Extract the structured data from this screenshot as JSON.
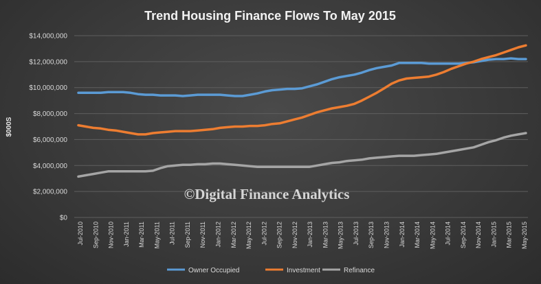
{
  "chart_data": {
    "type": "line",
    "title": "Trend Housing Finance Flows To May 2015",
    "ylabel": "$000S",
    "xlabel": "",
    "ylim": [
      0,
      14000000
    ],
    "yticks": [
      0,
      2000000,
      4000000,
      6000000,
      8000000,
      10000000,
      12000000,
      14000000
    ],
    "ytick_labels": [
      "$0",
      "$2,000,000",
      "$4,000,000",
      "$6,000,000",
      "$8,000,000",
      "$10,000,000",
      "$12,000,000",
      "$14,000,000"
    ],
    "x_tick_labels": [
      "Jul-2010",
      "Sep-2010",
      "Nov-2010",
      "Jan-2011",
      "Mar-2011",
      "May-2011",
      "Jul-2011",
      "Sep-2011",
      "Nov-2011",
      "Jan-2012",
      "Mar-2012",
      "May-2012",
      "Jul-2012",
      "Sep-2012",
      "Nov-2012",
      "Jan-2013",
      "Mar-2013",
      "May-2013",
      "Jul-2013",
      "Sep-2013",
      "Nov-2013",
      "Jan-2014",
      "Mar-2014",
      "May-2014",
      "Jul-2014",
      "Sep-2014",
      "Nov-2014",
      "Jan-2015",
      "Mar-2015",
      "May-2015"
    ],
    "grid": true,
    "legend_position": "bottom",
    "watermark": "©Digital Finance Analytics",
    "series": [
      {
        "name": "Owner Occupied",
        "color": "#5b9bd5",
        "values": [
          9600000,
          9600000,
          9600000,
          9600000,
          9650000,
          9650000,
          9650000,
          9600000,
          9500000,
          9450000,
          9450000,
          9400000,
          9400000,
          9400000,
          9350000,
          9400000,
          9450000,
          9450000,
          9450000,
          9450000,
          9400000,
          9350000,
          9350000,
          9450000,
          9550000,
          9700000,
          9800000,
          9850000,
          9900000,
          9900000,
          9950000,
          10100000,
          10250000,
          10450000,
          10650000,
          10800000,
          10900000,
          11000000,
          11150000,
          11350000,
          11500000,
          11600000,
          11700000,
          11900000,
          11900000,
          11900000,
          11900000,
          11850000,
          11850000,
          11850000,
          11850000,
          11850000,
          11900000,
          11950000,
          12050000,
          12150000,
          12200000,
          12200000,
          12250000,
          12200000,
          12200000
        ]
      },
      {
        "name": "Investment",
        "color": "#ed7d31",
        "values": [
          7100000,
          7000000,
          6900000,
          6850000,
          6750000,
          6700000,
          6600000,
          6500000,
          6400000,
          6400000,
          6500000,
          6550000,
          6600000,
          6650000,
          6650000,
          6650000,
          6700000,
          6750000,
          6800000,
          6900000,
          6950000,
          7000000,
          7000000,
          7050000,
          7050000,
          7100000,
          7200000,
          7250000,
          7400000,
          7550000,
          7700000,
          7900000,
          8100000,
          8250000,
          8400000,
          8500000,
          8600000,
          8750000,
          9000000,
          9300000,
          9600000,
          9950000,
          10300000,
          10550000,
          10700000,
          10750000,
          10800000,
          10850000,
          11000000,
          11200000,
          11450000,
          11650000,
          11850000,
          12000000,
          12200000,
          12350000,
          12500000,
          12700000,
          12900000,
          13100000,
          13250000
        ]
      },
      {
        "name": "Refinance",
        "color": "#a5a5a5",
        "values": [
          3150000,
          3250000,
          3350000,
          3450000,
          3550000,
          3550000,
          3550000,
          3550000,
          3550000,
          3550000,
          3600000,
          3800000,
          3950000,
          4000000,
          4050000,
          4050000,
          4100000,
          4100000,
          4150000,
          4150000,
          4100000,
          4050000,
          4000000,
          3950000,
          3900000,
          3900000,
          3900000,
          3900000,
          3900000,
          3900000,
          3900000,
          3900000,
          4000000,
          4100000,
          4200000,
          4250000,
          4350000,
          4400000,
          4450000,
          4550000,
          4600000,
          4650000,
          4700000,
          4750000,
          4750000,
          4750000,
          4800000,
          4850000,
          4900000,
          5000000,
          5100000,
          5200000,
          5300000,
          5400000,
          5600000,
          5800000,
          5950000,
          6150000,
          6300000,
          6400000,
          6500000
        ]
      }
    ]
  }
}
